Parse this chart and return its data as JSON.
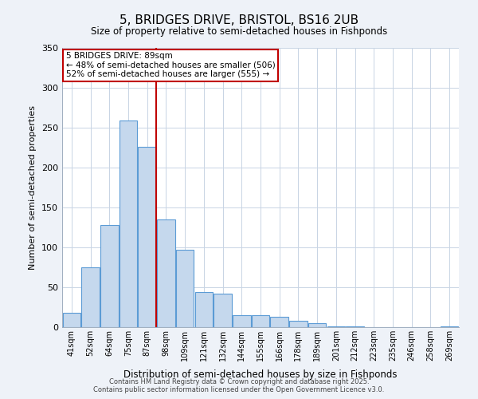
{
  "title": "5, BRIDGES DRIVE, BRISTOL, BS16 2UB",
  "subtitle": "Size of property relative to semi-detached houses in Fishponds",
  "xlabel": "Distribution of semi-detached houses by size in Fishponds",
  "ylabel": "Number of semi-detached properties",
  "categories": [
    "41sqm",
    "52sqm",
    "64sqm",
    "75sqm",
    "87sqm",
    "98sqm",
    "109sqm",
    "121sqm",
    "132sqm",
    "144sqm",
    "155sqm",
    "166sqm",
    "178sqm",
    "189sqm",
    "201sqm",
    "212sqm",
    "223sqm",
    "235sqm",
    "246sqm",
    "258sqm",
    "269sqm"
  ],
  "values": [
    18,
    75,
    128,
    259,
    226,
    135,
    97,
    44,
    42,
    15,
    15,
    13,
    8,
    5,
    1,
    1,
    0,
    0,
    0,
    0,
    1
  ],
  "bar_color": "#c5d8ed",
  "bar_edge_color": "#5b9bd5",
  "vline_color": "#c00000",
  "vline_bar_index": 4,
  "annotation_title": "5 BRIDGES DRIVE: 89sqm",
  "annotation_line1": "← 48% of semi-detached houses are smaller (506)",
  "annotation_line2": "52% of semi-detached houses are larger (555) →",
  "annotation_box_color": "#c00000",
  "ylim": [
    0,
    350
  ],
  "yticks": [
    0,
    50,
    100,
    150,
    200,
    250,
    300,
    350
  ],
  "footer1": "Contains HM Land Registry data © Crown copyright and database right 2025.",
  "footer2": "Contains public sector information licensed under the Open Government Licence v3.0.",
  "bg_color": "#eef2f8",
  "plot_bg_color": "#ffffff"
}
